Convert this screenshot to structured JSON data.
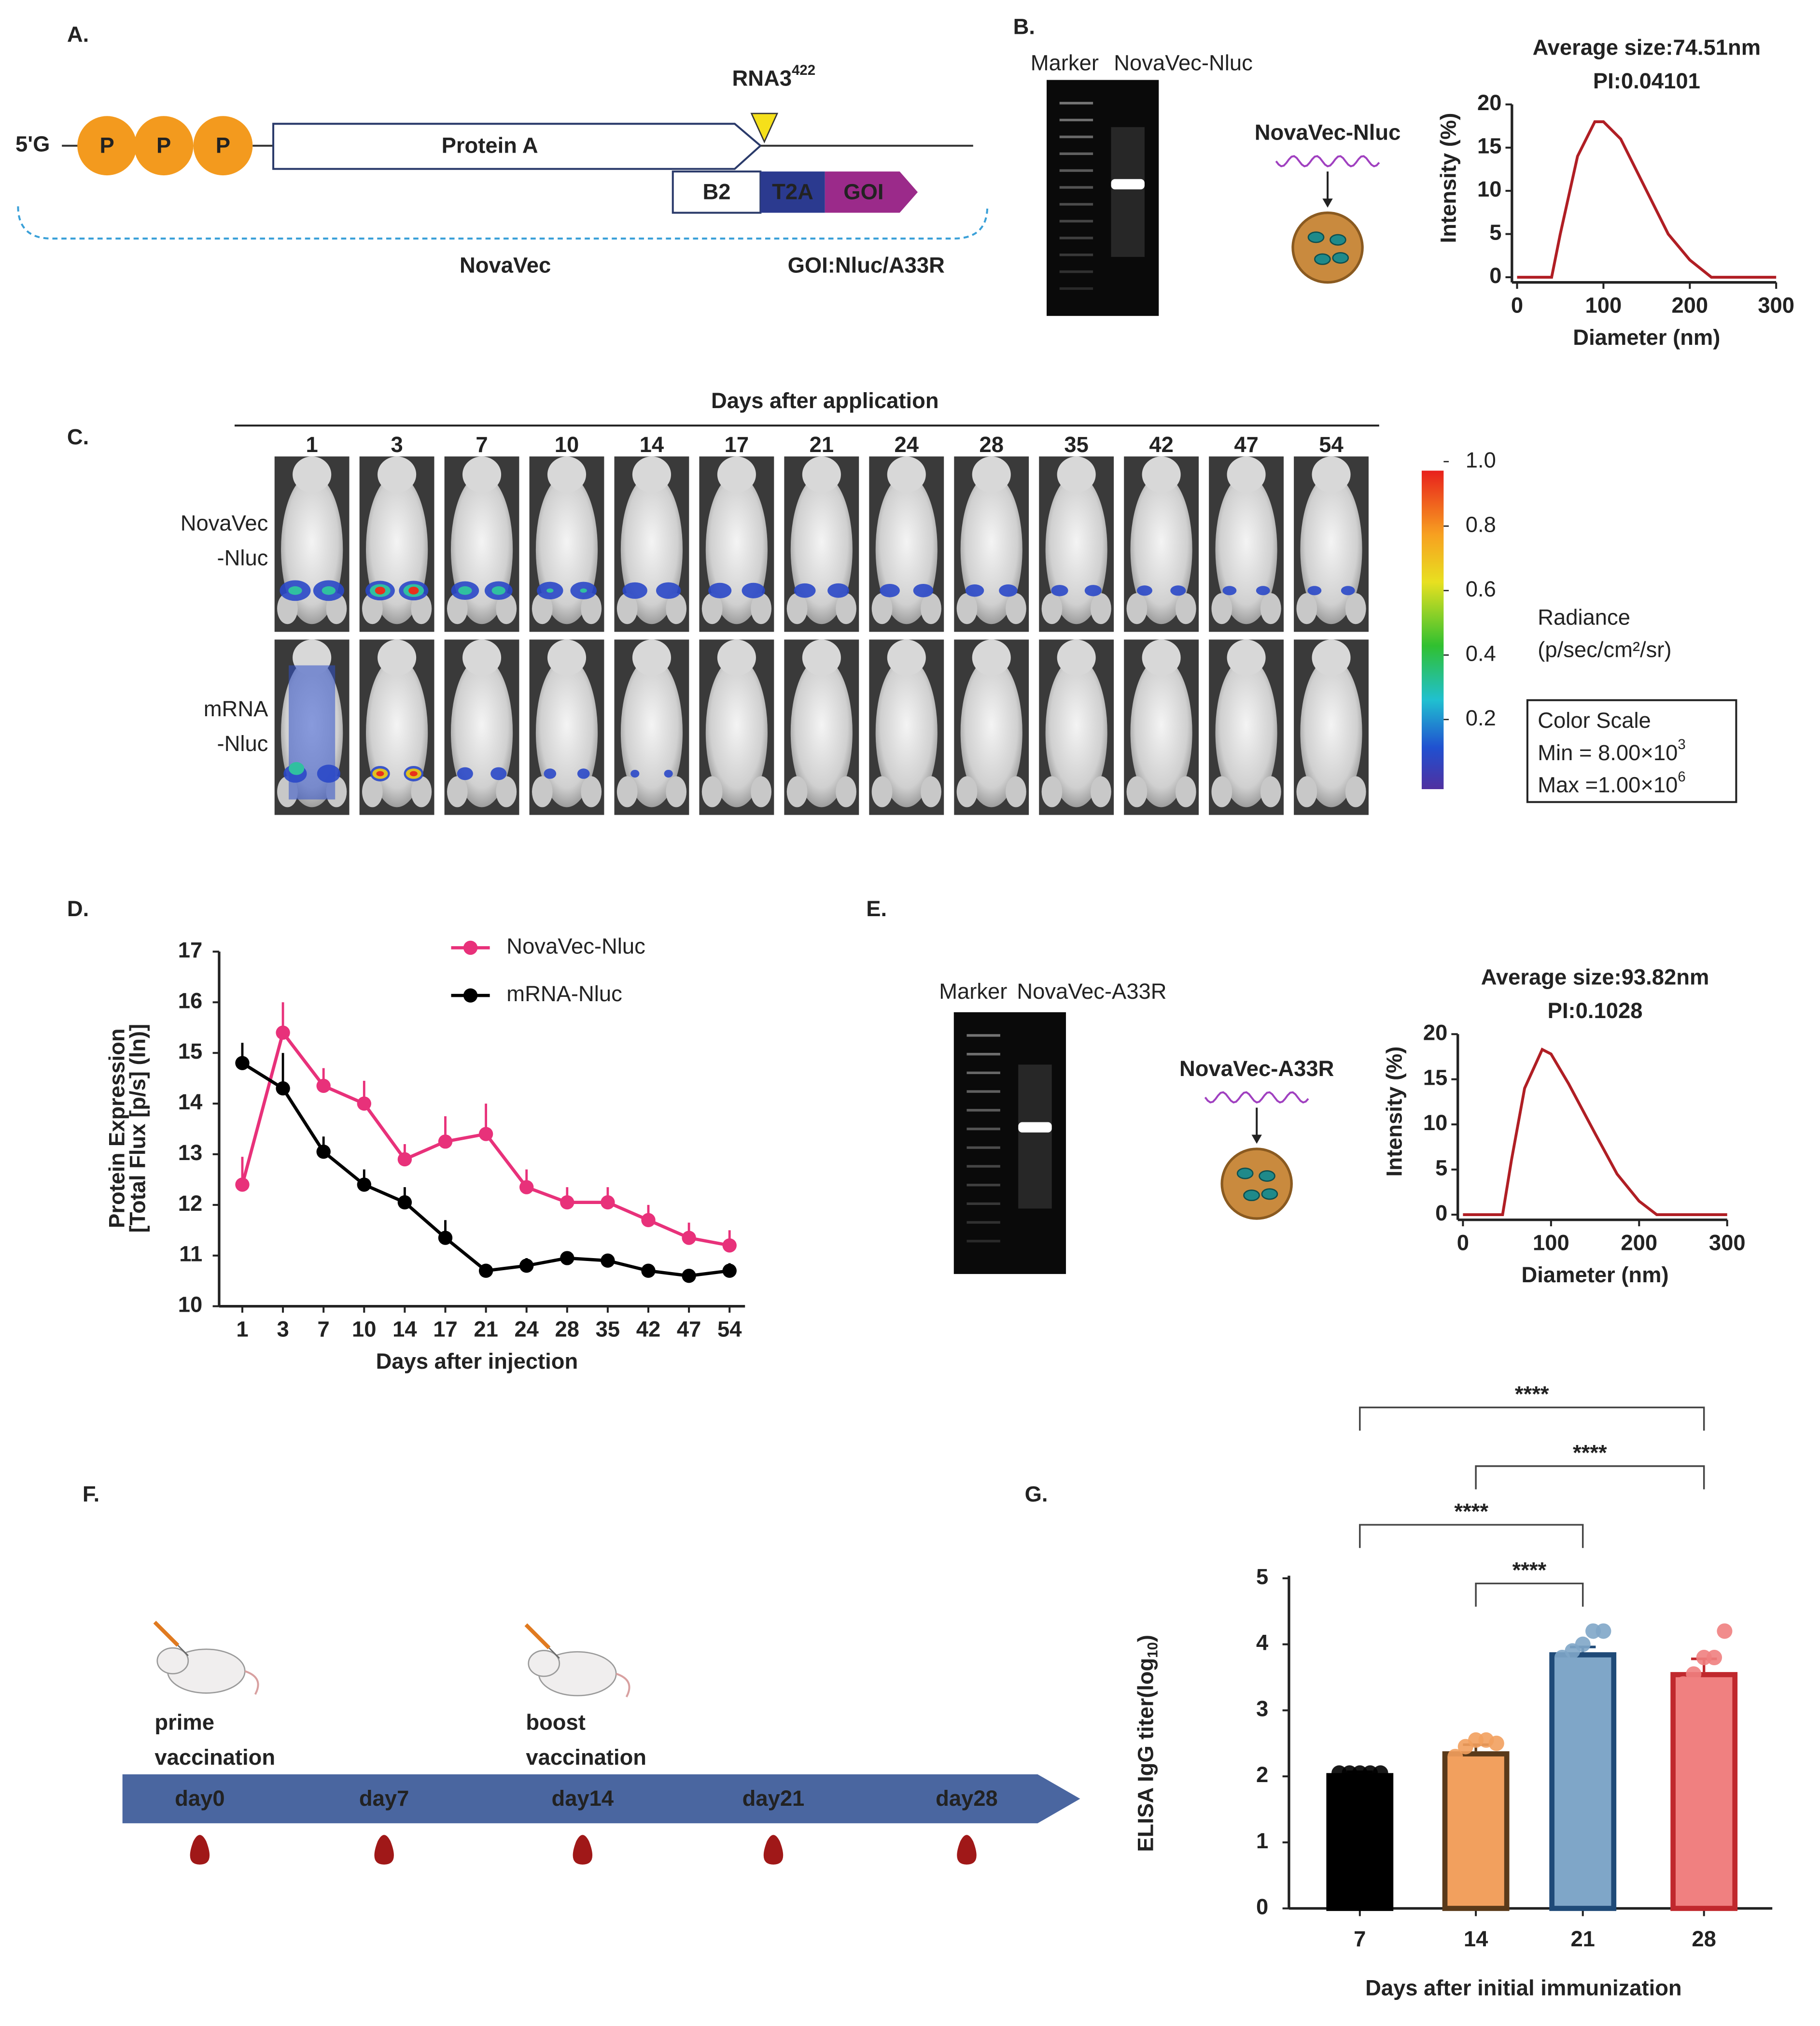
{
  "panel_labels": [
    "A.",
    "B.",
    "C.",
    "D.",
    "E.",
    "F.",
    "G."
  ],
  "panel_a": {
    "five_prime": "5'G",
    "phosphates": [
      "P",
      "P",
      "P"
    ],
    "protein_a": "Protein A",
    "site": "RNA3",
    "site_sup": "422",
    "b2": "B2",
    "t2a": "T2A",
    "goi": "GOI",
    "vector": "NovaVec",
    "goi_note": "GOI:Nluc/A33R"
  },
  "panel_b": {
    "gel_labels": [
      "Marker",
      "NovaVec-Nluc"
    ],
    "particle_label": "NovaVec-Nluc"
  },
  "panel_e": {
    "gel_labels": [
      "Marker",
      "NovaVec-A33R"
    ],
    "particle_label": "NovaVec-A33R"
  },
  "panel_c": {
    "title": "Days after application",
    "days": [
      "1",
      "3",
      "7",
      "10",
      "14",
      "17",
      "21",
      "24",
      "28",
      "35",
      "42",
      "47",
      "54"
    ],
    "rows": [
      [
        "NovaVec",
        "-Nluc"
      ],
      [
        "mRNA",
        "-Nluc"
      ]
    ],
    "colorbar": {
      "lim": [
        0,
        1
      ],
      "ticks": [
        {
          "value": 1,
          "label": "1.0"
        },
        0.8,
        0.6,
        0.4,
        0.2
      ],
      "label": [
        "Radiance",
        "(p/sec/cm²/sr)"
      ]
    },
    "color_scale": {
      "title": "Color Scale",
      "min": "Min = 8.00×10",
      "min_exp": "3",
      "max": "Max =1.00×10",
      "max_exp": "6"
    }
  },
  "panel_f": {
    "events": [
      [
        "prime",
        "vaccination"
      ],
      [
        "boost",
        "vaccination"
      ]
    ],
    "days": [
      "day0",
      "day7",
      "day14",
      "day21",
      "day28"
    ]
  },
  "chart_data": [
    {
      "type": "line",
      "title": "Average size:74.51nm",
      "subtitle": "PI:0.04101",
      "xlabel": "Diameter (nm)",
      "ylabel": "Intensity (%)",
      "x": [
        0,
        40,
        50,
        70,
        90,
        100,
        120,
        150,
        175,
        200,
        225,
        300
      ],
      "values": [
        0,
        0,
        5,
        14,
        18,
        18,
        16,
        10,
        5,
        2,
        0,
        0
      ],
      "color": "#b01e24",
      "xlim": [
        0,
        300
      ],
      "xticks": [
        0,
        100,
        200,
        300
      ],
      "ylim": [
        0,
        20
      ],
      "yticks": [
        0,
        5,
        10,
        15,
        20
      ]
    },
    {
      "type": "line",
      "title": "Average size:93.82nm",
      "subtitle": "PI:0.1028",
      "xlabel": "Diameter (nm)",
      "ylabel": "Intensity (%)",
      "x": [
        0,
        45,
        55,
        70,
        90,
        100,
        120,
        150,
        175,
        200,
        220,
        300
      ],
      "values": [
        0,
        0,
        6,
        14,
        18.3,
        17.8,
        14.5,
        9,
        4.5,
        1.5,
        0,
        0
      ],
      "color": "#b01e24",
      "xlim": [
        0,
        300
      ],
      "xticks": [
        0,
        100,
        200,
        300
      ],
      "ylim": [
        0,
        20
      ],
      "yticks": [
        0,
        5,
        10,
        15,
        20
      ]
    },
    {
      "type": "line",
      "xlabel": "Days after injection",
      "ylabel": [
        "Protein Expression",
        "[Total Flux [p/s] (ln)]"
      ],
      "categories": [
        "1",
        "3",
        "7",
        "10",
        "14",
        "17",
        "21",
        "24",
        "28",
        "35",
        "42",
        "47",
        "54"
      ],
      "series": [
        {
          "name": "NovaVec-Nluc",
          "color": "#e8317a",
          "values": [
            12.4,
            15.4,
            14.35,
            14.0,
            12.9,
            13.25,
            13.4,
            12.35,
            12.05,
            12.05,
            11.7,
            11.35,
            11.2
          ],
          "errors": [
            0.55,
            0.6,
            0.35,
            0.45,
            0.3,
            0.5,
            0.6,
            0.35,
            0.3,
            0.3,
            0.3,
            0.3,
            0.3
          ]
        },
        {
          "name": "mRNA-Nluc",
          "color": "#000000",
          "values": [
            14.8,
            14.3,
            13.05,
            12.4,
            12.05,
            11.35,
            10.7,
            10.8,
            10.95,
            10.9,
            10.7,
            10.6,
            10.7
          ],
          "errors": [
            0.4,
            0.7,
            0.3,
            0.3,
            0.3,
            0.35,
            0.1,
            0.15,
            0.1,
            0.1,
            0.1,
            0.1,
            0.15
          ]
        }
      ],
      "ylim": [
        10,
        17
      ],
      "yticks": [
        10,
        11,
        12,
        13,
        14,
        15,
        16,
        17
      ]
    },
    {
      "type": "bar",
      "xlabel": "Days after initial immunization",
      "ylabel": "ELISA IgG titer(log",
      "ylabel_sub": "10",
      "ylabel_end": ")",
      "categories": [
        "7",
        "14",
        "21",
        "28"
      ],
      "values": [
        2.05,
        2.38,
        3.88,
        3.58
      ],
      "errors": [
        0.02,
        0.1,
        0.08,
        0.2
      ],
      "colors": [
        "#000000",
        "#f2a05e",
        "#7fa6c8",
        "#f08080"
      ],
      "edge_colors": [
        "#000000",
        "#5a3a1a",
        "#1f4a78",
        "#c0282d"
      ],
      "points": [
        [
          2.05,
          2.05,
          2.05,
          2.05,
          2.05
        ],
        [
          2.3,
          2.45,
          2.55,
          2.55,
          2.5
        ],
        [
          3.8,
          3.9,
          4.0,
          4.2,
          4.2
        ],
        [
          3.4,
          3.55,
          3.8,
          3.8,
          4.2
        ]
      ],
      "brackets": [
        {
          "text": "****",
          "between": [
            "14",
            "21"
          ]
        },
        {
          "text": "****",
          "between": [
            "7",
            "21"
          ]
        },
        {
          "text": "****",
          "between": [
            "14",
            "28"
          ]
        },
        {
          "text": "****",
          "between": [
            "7",
            "28"
          ]
        }
      ],
      "ylim": [
        0,
        5
      ],
      "yticks": [
        0,
        1,
        2,
        3,
        4,
        5
      ]
    }
  ]
}
